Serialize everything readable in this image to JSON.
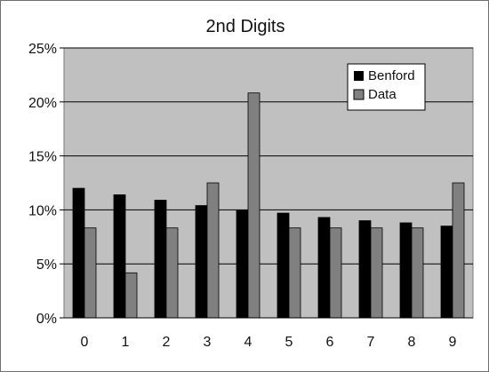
{
  "chart_data": {
    "type": "bar",
    "title": "2nd Digits",
    "xlabel": "",
    "ylabel": "",
    "categories": [
      "0",
      "1",
      "2",
      "3",
      "4",
      "5",
      "6",
      "7",
      "8",
      "9"
    ],
    "ylim": [
      0,
      25
    ],
    "yticks": [
      0,
      5,
      10,
      15,
      20,
      25
    ],
    "ytick_labels": [
      "0%",
      "5%",
      "10%",
      "15%",
      "20%",
      "25%"
    ],
    "grid": true,
    "legend_position": "top-right",
    "series": [
      {
        "name": "Benford",
        "color": "#000000",
        "values": [
          12.0,
          11.4,
          10.9,
          10.4,
          10.0,
          9.7,
          9.3,
          9.0,
          8.8,
          8.5
        ]
      },
      {
        "name": "Data",
        "color": "#808080",
        "values": [
          8.33,
          4.17,
          8.33,
          12.5,
          20.83,
          8.33,
          8.33,
          8.33,
          8.33,
          12.5
        ]
      }
    ],
    "colors": {
      "plot_background": "#c0c0c0",
      "gridline": "#000000",
      "axis": "#000000"
    }
  }
}
